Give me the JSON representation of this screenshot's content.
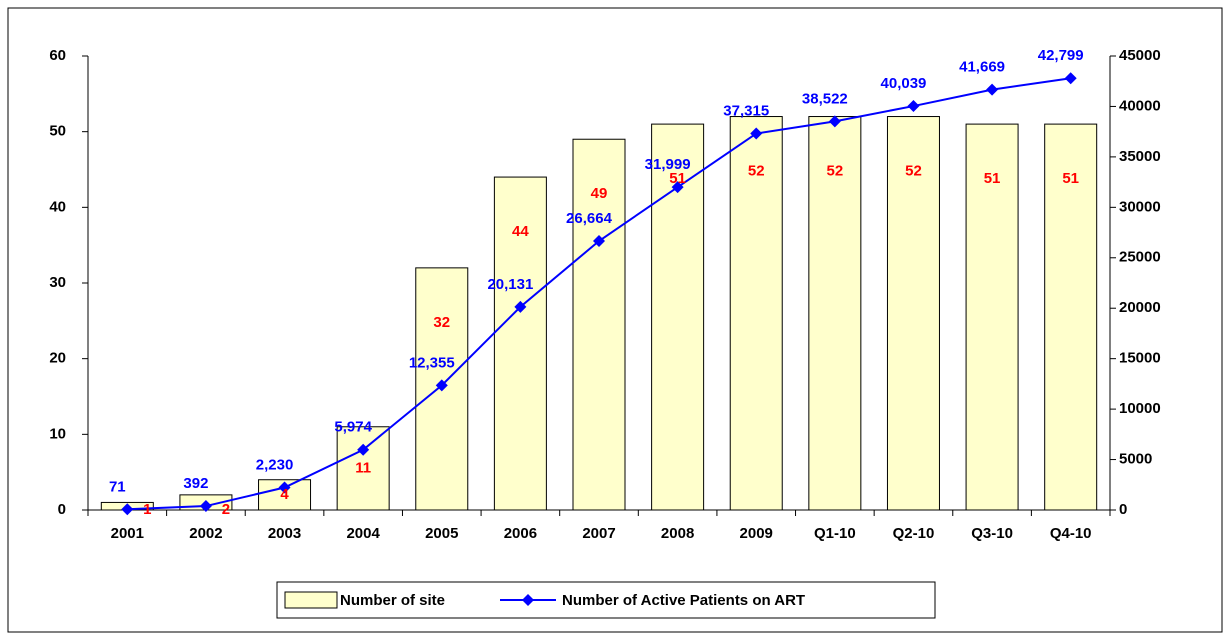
{
  "chart_data": {
    "type": "bar-line",
    "categories": [
      "2001",
      "2002",
      "2003",
      "2004",
      "2005",
      "2006",
      "2007",
      "2008",
      "2009",
      "Q1-10",
      "Q2-10",
      "Q3-10",
      "Q4-10"
    ],
    "series": [
      {
        "name": "Number of site",
        "type": "bar",
        "color": "#ffffcc",
        "label_color": "#ff0000",
        "values": [
          1,
          2,
          4,
          11,
          32,
          44,
          49,
          51,
          52,
          52,
          52,
          51,
          51
        ]
      },
      {
        "name": "Number of Active Patients on ART",
        "type": "line",
        "axis": "y2",
        "color": "#0000ff",
        "values": [
          71,
          392,
          2230,
          5974,
          12355,
          20131,
          26664,
          31999,
          37315,
          38522,
          40039,
          41669,
          42799
        ],
        "value_labels": [
          "71",
          "392",
          "2,230",
          "5,974",
          "12,355",
          "20,131",
          "26,664",
          "31,999",
          "37,315",
          "38,522",
          "40,039",
          "41,669",
          "42,799"
        ]
      }
    ],
    "ylim": [
      0,
      60
    ],
    "yticks": [
      0,
      10,
      20,
      30,
      40,
      50,
      60
    ],
    "y2lim": [
      0,
      45000
    ],
    "y2ticks": [
      0,
      5000,
      10000,
      15000,
      20000,
      25000,
      30000,
      35000,
      40000,
      45000
    ],
    "legend": "bottom"
  }
}
